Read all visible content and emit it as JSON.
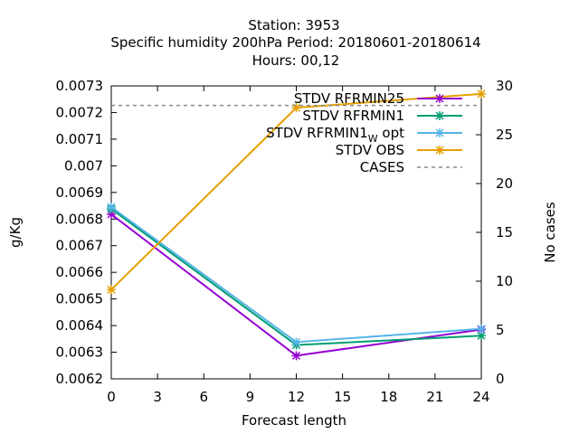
{
  "title": {
    "line1": "Station:     3953",
    "line2": "Specific humidity 200hPa   Period: 20180601-20180614",
    "line3": "Hours:  00,12"
  },
  "chart_data": {
    "type": "line",
    "xlabel": "Forecast length",
    "ylabel": "g/Kg",
    "y2label": "No cases",
    "xlim": [
      0,
      24
    ],
    "ylim": [
      0.0062,
      0.0073
    ],
    "y2lim": [
      0,
      30
    ],
    "xticks": [
      "0",
      "3",
      "6",
      "9",
      "12",
      "15",
      "18",
      "21",
      "24"
    ],
    "yticks": [
      "0.0062",
      "0.0063",
      "0.0064",
      "0.0065",
      "0.0066",
      "0.0067",
      "0.0068",
      "0.0069",
      "0.007",
      "0.0071",
      "0.0072",
      "0.0073"
    ],
    "y2ticks": [
      "0",
      "5",
      "10",
      "15",
      "20",
      "25",
      "30"
    ],
    "grid": false,
    "legend_position": "top-right",
    "series": [
      {
        "name": "STDV RFRMIN25",
        "key": "rfrmin25",
        "axis": "y",
        "color": "#9400d3",
        "marker": "x",
        "x": [
          0,
          12,
          24
        ],
        "y": [
          0.006818,
          0.006287,
          0.006385
        ]
      },
      {
        "name": "STDV RFRMIN1",
        "key": "rfrmin1",
        "axis": "y",
        "color": "#009e73",
        "marker": "x",
        "x": [
          0,
          12,
          24
        ],
        "y": [
          0.006838,
          0.006327,
          0.006362
        ]
      },
      {
        "name": "STDV RFRMIN1",
        "key": "rfrmin1_w_opt",
        "name_subscript": "W",
        "name_suffix": " opt",
        "axis": "y",
        "color": "#56b4e9",
        "marker": "x",
        "x": [
          0,
          12,
          24
        ],
        "y": [
          0.006845,
          0.006338,
          0.006388
        ]
      },
      {
        "name": "STDV OBS",
        "key": "obs",
        "axis": "y",
        "color": "#e69f00",
        "marker": "x",
        "x": [
          0,
          12,
          24
        ],
        "y": [
          0.006535,
          0.007218,
          0.00727
        ]
      },
      {
        "name": "CASES",
        "key": "cases",
        "axis": "y2",
        "color": "#888888",
        "dashed": true,
        "marker": "none",
        "x": [
          0,
          24
        ],
        "y": [
          28,
          28
        ]
      }
    ]
  }
}
